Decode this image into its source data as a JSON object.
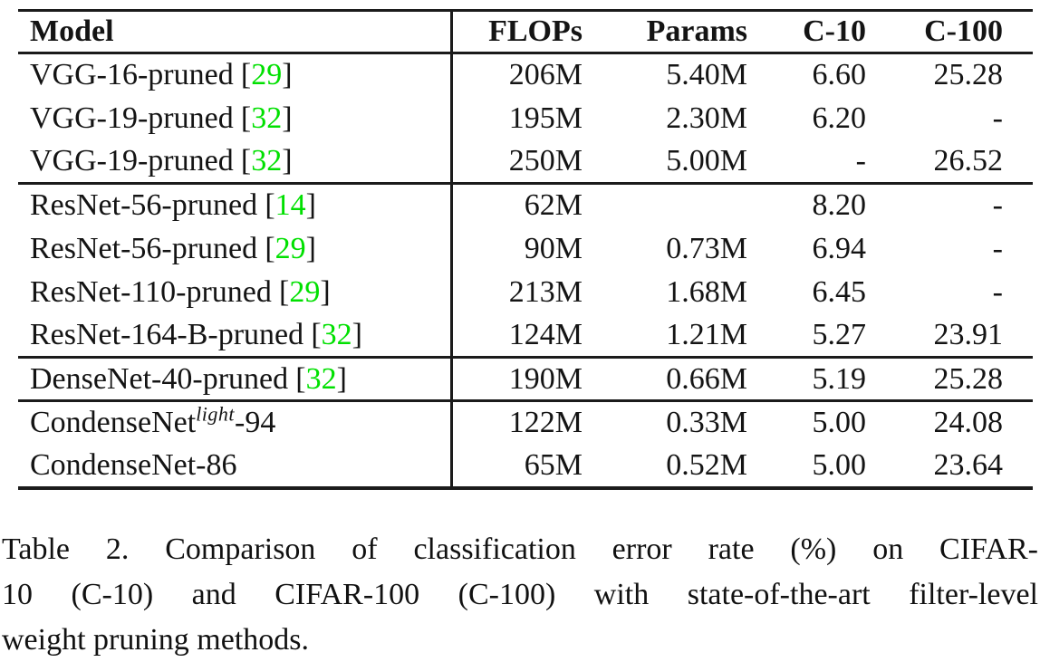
{
  "colors": {
    "citation_green": "#00e000",
    "rule_black": "#1b1b1b",
    "text": "#141414"
  },
  "table": {
    "headers": {
      "model": "Model",
      "flops": "FLOPs",
      "params": "Params",
      "c10": "C-10",
      "c100": "C-100"
    },
    "sections": [
      {
        "name": "vgg",
        "rows": [
          {
            "model": "VGG-16-pruned",
            "cite": "29",
            "flops": "206M",
            "params": "5.40M",
            "c10": "6.60",
            "c100": "25.28"
          },
          {
            "model": "VGG-19-pruned",
            "cite": "32",
            "flops": "195M",
            "params": "2.30M",
            "c10": "6.20",
            "c100": "-"
          },
          {
            "model": "VGG-19-pruned",
            "cite": "32",
            "flops": "250M",
            "params": "5.00M",
            "c10": "-",
            "c100": "26.52"
          }
        ]
      },
      {
        "name": "resnet",
        "rows": [
          {
            "model": "ResNet-56-pruned",
            "cite": "14",
            "flops": "62M",
            "params": "",
            "c10": "8.20",
            "c100": "-"
          },
          {
            "model": "ResNet-56-pruned",
            "cite": "29",
            "flops": "90M",
            "params": "0.73M",
            "c10": "6.94",
            "c100": "-"
          },
          {
            "model": "ResNet-110-pruned",
            "cite": "29",
            "flops": "213M",
            "params": "1.68M",
            "c10": "6.45",
            "c100": "-"
          },
          {
            "model": "ResNet-164-B-pruned",
            "cite": "32",
            "flops": "124M",
            "params": "1.21M",
            "c10": "5.27",
            "c100": "23.91"
          }
        ]
      },
      {
        "name": "densenet",
        "rows": [
          {
            "model": "DenseNet-40-pruned",
            "cite": "32",
            "flops": "190M",
            "params": "0.66M",
            "c10": "5.19",
            "c100": "25.28"
          }
        ]
      },
      {
        "name": "condensenet",
        "rows": [
          {
            "model": "CondenseNet",
            "sup": "light",
            "suffix": "-94",
            "flops": "122M",
            "params": "0.33M",
            "c10": "5.00",
            "c100": "24.08"
          },
          {
            "model": "CondenseNet-86",
            "flops": "65M",
            "params": "0.52M",
            "c10": "5.00",
            "c100": "23.64"
          }
        ]
      }
    ]
  },
  "caption": {
    "full_text": "Table 2. Comparison of classification error rate (%) on CIFAR-10 (C-10) and CIFAR-100 (C-100) with state-of-the-art filter-level weight pruning methods.",
    "lines": [
      "Table 2. Comparison of classification error rate (%) on CIFAR-",
      "10 (C-10) and CIFAR-100 (C-100) with state-of-the-art filter-level",
      "weight pruning methods."
    ]
  }
}
